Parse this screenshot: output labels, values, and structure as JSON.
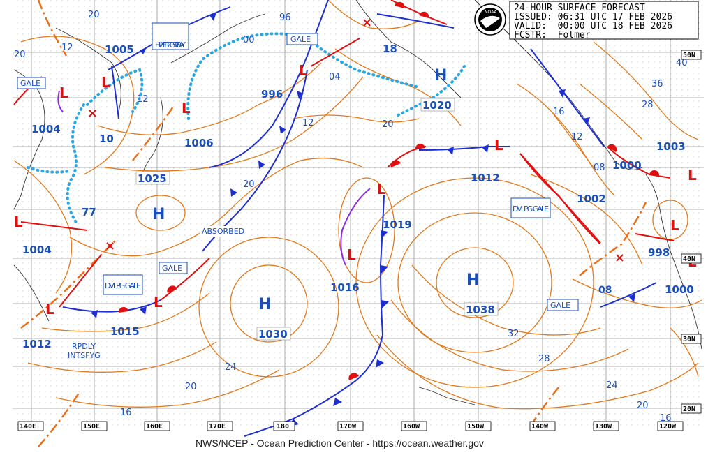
{
  "header": {
    "line1": "24-HOUR SURFACE FORECAST",
    "line2": "ISSUED: 06:31 UTC 17 FEB 2026",
    "line3": "VALID:  00:00 UTC 18 FEB 2026",
    "line4": "FCSTR:  Folmer"
  },
  "logo_text": "NOAA",
  "footer": "NWS/NCEP - Ocean Prediction Center - https://ocean.weather.gov",
  "longitudes": [
    "140E",
    "150E",
    "160E",
    "170E",
    "180",
    "170W",
    "160W",
    "150W",
    "140W",
    "130W",
    "120W"
  ],
  "latitudes": [
    "50N",
    "40N",
    "30N",
    "20N"
  ],
  "highs": [
    {
      "label": "H",
      "pressure": "1025"
    },
    {
      "label": "H",
      "pressure": "1030"
    },
    {
      "label": "H",
      "pressure": "1038"
    },
    {
      "label": "H",
      "pressure": "1020"
    },
    {
      "label": "H",
      "pressure": "77"
    }
  ],
  "pressure_labels": [
    "1005",
    "996",
    "1004",
    "1006",
    "10",
    "1004",
    "1015",
    "1012",
    "1016",
    "1019",
    "1012",
    "1000",
    "1003",
    "1002",
    "998",
    "1000",
    "18",
    "08",
    "08"
  ],
  "isobar_numbers": [
    "20",
    "12",
    "20",
    "12",
    "96",
    "00",
    "04",
    "12",
    "20",
    "20",
    "16",
    "12",
    "40",
    "36",
    "28",
    "24",
    "20",
    "16",
    "28",
    "32",
    "24",
    "20",
    "16"
  ],
  "text_boxes": [
    {
      "text": "GALE"
    },
    {
      "text": "HVY FRZG SPRAY"
    },
    {
      "text": "GALE"
    },
    {
      "text": "GALE"
    },
    {
      "text": "DVLPG GALE"
    },
    {
      "text": "DVLPG GALE"
    },
    {
      "text": "GALE"
    }
  ],
  "annotations": [
    "ABSORBED",
    "RPDLY",
    "INTSFYG"
  ],
  "colors": {
    "isobar": "#e07a1c",
    "cold_front": "#1d2fd0",
    "warm_front": "#e01010",
    "occluded": "#8a2be2",
    "ice": "#2aa7e0",
    "text": "#1a4fb8"
  }
}
